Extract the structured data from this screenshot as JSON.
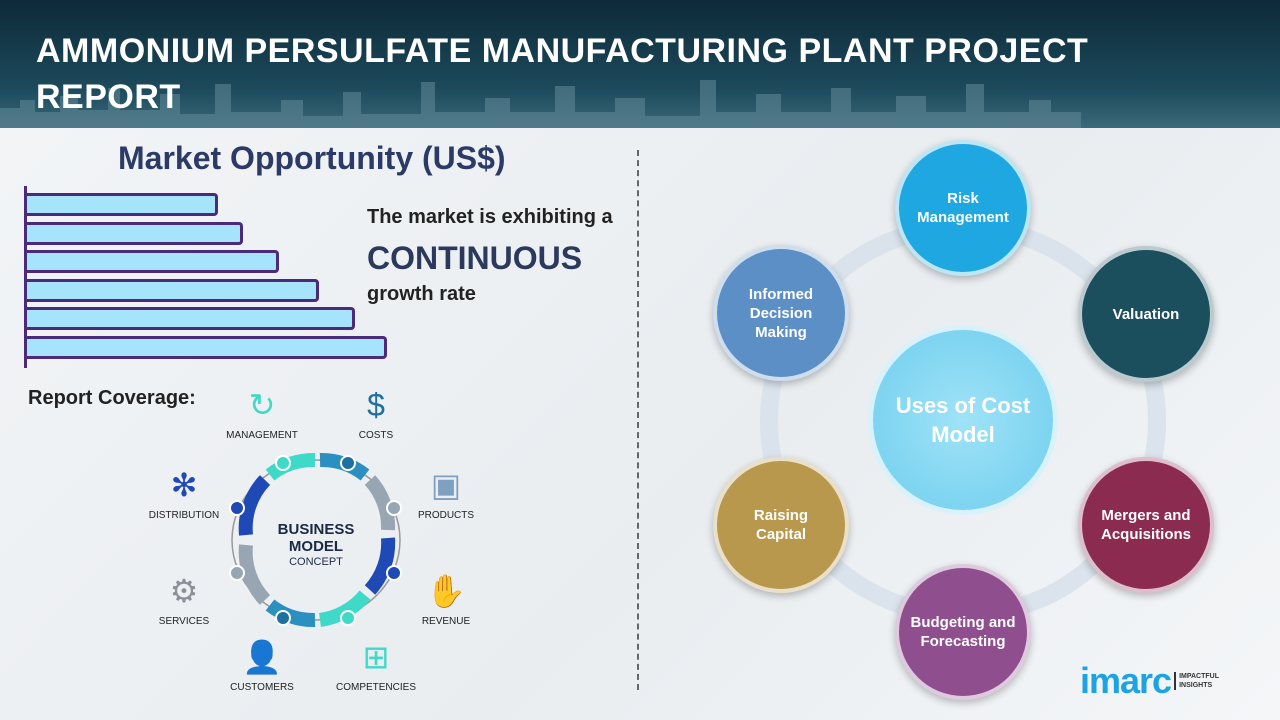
{
  "header": {
    "title": "AMMONIUM PERSULFATE MANUFACTURING PLANT PROJECT REPORT"
  },
  "market": {
    "title": "Market Opportunity (US$)",
    "line1": "The market is exhibiting a",
    "line2": "CONTINUOUS",
    "line3": "growth rate",
    "bar_relative_values": [
      0.53,
      0.6,
      0.7,
      0.81,
      0.91,
      1.0
    ],
    "bar_fill": "#a6e4fb",
    "bar_border": "#4b2a7a"
  },
  "coverage": {
    "title": "Report Coverage:",
    "center_line1": "BUSINESS",
    "center_line2": "MODEL",
    "center_line3": "CONCEPT",
    "items": [
      {
        "label": "MANAGEMENT",
        "icon": "lightbulb-cycle-icon"
      },
      {
        "label": "COSTS",
        "icon": "money-bag-icon"
      },
      {
        "label": "DISTRIBUTION",
        "icon": "network-icon"
      },
      {
        "label": "PRODUCTS",
        "icon": "box-icon"
      },
      {
        "label": "SERVICES",
        "icon": "gears-icon"
      },
      {
        "label": "REVENUE",
        "icon": "hand-coins-icon"
      },
      {
        "label": "CUSTOMERS",
        "icon": "user-icon"
      },
      {
        "label": "COMPETENCIES",
        "icon": "hierarchy-icon"
      }
    ]
  },
  "uses": {
    "center": "Uses of Cost Model",
    "nodes": [
      {
        "label": "Risk Management",
        "color": "#1ea7e1"
      },
      {
        "label": "Valuation",
        "color": "#1b4f5e"
      },
      {
        "label": "Mergers and Acquisitions",
        "color": "#8a2b4f"
      },
      {
        "label": "Budgeting and Forecasting",
        "color": "#8f4f8f"
      },
      {
        "label": "Raising Capital",
        "color": "#b8984c"
      },
      {
        "label": "Informed Decision Making",
        "color": "#5b8fc5"
      }
    ]
  },
  "logo": {
    "name": "imarc",
    "tagline1": "IMPACTFUL",
    "tagline2": "INSIGHTS"
  }
}
